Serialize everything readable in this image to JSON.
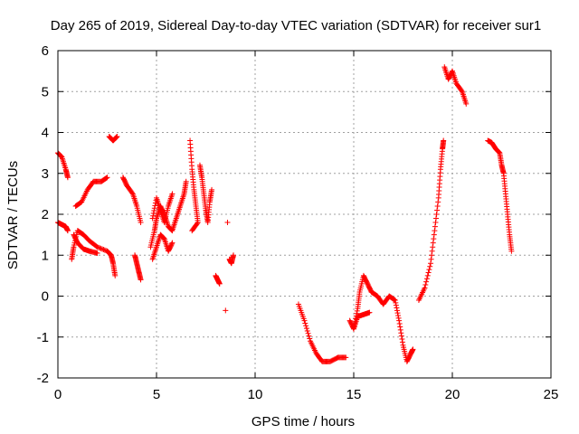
{
  "chart_data": {
    "type": "scatter",
    "title": "Day 265 of 2019, Sidereal Day-to-day VTEC variation (SDTVAR) for receiver sur1",
    "xlabel": "GPS time / hours",
    "ylabel": "SDTVAR / TECUs",
    "xlim": [
      0,
      25
    ],
    "ylim": [
      -2,
      6
    ],
    "xticks": [
      0,
      5,
      10,
      15,
      20,
      25
    ],
    "yticks": [
      -2,
      -1,
      0,
      1,
      2,
      3,
      4,
      5,
      6
    ],
    "grid": true,
    "marker": "+",
    "color": "#ff0000",
    "series": [
      {
        "name": "SDTVAR",
        "segments": [
          [
            [
              0.0,
              3.5
            ],
            [
              0.2,
              3.4
            ],
            [
              0.4,
              3.1
            ],
            [
              0.5,
              2.9
            ]
          ],
          [
            [
              0.0,
              1.8
            ],
            [
              0.2,
              1.75
            ],
            [
              0.4,
              1.7
            ],
            [
              0.5,
              1.6
            ]
          ],
          [
            [
              0.7,
              0.9
            ],
            [
              0.8,
              1.2
            ],
            [
              1.0,
              1.6
            ],
            [
              1.3,
              1.5
            ],
            [
              1.6,
              1.35
            ],
            [
              2.0,
              1.2
            ],
            [
              2.5,
              1.1
            ],
            [
              2.7,
              1.0
            ],
            [
              2.8,
              0.8
            ],
            [
              2.9,
              0.5
            ]
          ],
          [
            [
              0.8,
              1.5
            ],
            [
              1.0,
              1.3
            ],
            [
              1.3,
              1.15
            ],
            [
              1.6,
              1.1
            ],
            [
              2.0,
              1.05
            ]
          ],
          [
            [
              0.9,
              2.2
            ],
            [
              1.2,
              2.3
            ],
            [
              1.5,
              2.6
            ],
            [
              1.8,
              2.8
            ],
            [
              2.2,
              2.8
            ],
            [
              2.5,
              2.9
            ]
          ],
          [
            [
              2.6,
              3.9
            ],
            [
              2.8,
              3.8
            ],
            [
              3.0,
              3.9
            ]
          ],
          [
            [
              3.3,
              2.9
            ],
            [
              3.5,
              2.7
            ],
            [
              3.8,
              2.5
            ],
            [
              4.0,
              2.2
            ],
            [
              4.2,
              1.8
            ]
          ],
          [
            [
              3.9,
              1.0
            ],
            [
              4.0,
              0.8
            ],
            [
              4.1,
              0.6
            ],
            [
              4.2,
              0.4
            ]
          ],
          [
            [
              4.7,
              1.2
            ],
            [
              4.9,
              1.6
            ],
            [
              5.0,
              1.9
            ],
            [
              5.2,
              2.2
            ],
            [
              5.4,
              2.0
            ],
            [
              5.6,
              1.7
            ],
            [
              5.8,
              1.6
            ],
            [
              6.0,
              1.9
            ],
            [
              6.2,
              2.2
            ],
            [
              6.4,
              2.5
            ],
            [
              6.5,
              2.8
            ]
          ],
          [
            [
              4.8,
              0.9
            ],
            [
              5.0,
              1.2
            ],
            [
              5.2,
              1.5
            ],
            [
              5.4,
              1.4
            ],
            [
              5.6,
              1.1
            ],
            [
              5.8,
              1.3
            ]
          ],
          [
            [
              4.8,
              1.9
            ],
            [
              5.0,
              2.4
            ],
            [
              5.2,
              2.1
            ],
            [
              5.4,
              1.8
            ],
            [
              5.6,
              2.2
            ],
            [
              5.8,
              2.5
            ]
          ],
          [
            [
              6.7,
              3.8
            ],
            [
              6.8,
              3.1
            ],
            [
              6.9,
              2.6
            ],
            [
              7.0,
              2.2
            ],
            [
              7.1,
              1.8
            ],
            [
              6.8,
              1.6
            ]
          ],
          [
            [
              7.2,
              3.2
            ],
            [
              7.3,
              2.9
            ],
            [
              7.4,
              2.5
            ],
            [
              7.5,
              2.1
            ],
            [
              7.6,
              1.8
            ],
            [
              7.7,
              2.3
            ],
            [
              7.8,
              2.6
            ]
          ],
          [
            [
              8.0,
              0.5
            ],
            [
              8.1,
              0.4
            ],
            [
              8.2,
              0.3
            ]
          ],
          [
            [
              8.5,
              -0.35
            ]
          ],
          [
            [
              8.6,
              1.8
            ]
          ],
          [
            [
              8.7,
              0.9
            ],
            [
              8.8,
              0.8
            ],
            [
              8.9,
              1.0
            ]
          ],
          [
            [
              12.2,
              -0.2
            ],
            [
              12.5,
              -0.6
            ],
            [
              12.8,
              -1.1
            ],
            [
              13.1,
              -1.4
            ],
            [
              13.4,
              -1.6
            ],
            [
              13.8,
              -1.6
            ],
            [
              14.2,
              -1.5
            ],
            [
              14.6,
              -1.5
            ]
          ],
          [
            [
              14.8,
              -0.6
            ],
            [
              15.0,
              -0.8
            ],
            [
              15.2,
              -0.3
            ],
            [
              15.3,
              0.1
            ],
            [
              15.5,
              0.5
            ],
            [
              15.7,
              0.3
            ],
            [
              15.9,
              0.1
            ],
            [
              16.2,
              0.0
            ],
            [
              16.5,
              -0.2
            ],
            [
              16.8,
              0.0
            ],
            [
              17.1,
              -0.1
            ],
            [
              17.3,
              -0.6
            ],
            [
              17.5,
              -1.2
            ],
            [
              17.7,
              -1.6
            ],
            [
              17.9,
              -1.4
            ],
            [
              18.0,
              -1.3
            ]
          ],
          [
            [
              15.0,
              -0.8
            ],
            [
              15.2,
              -0.5
            ],
            [
              15.5,
              -0.45
            ],
            [
              15.8,
              -0.4
            ]
          ],
          [
            [
              18.3,
              -0.1
            ],
            [
              18.6,
              0.2
            ],
            [
              18.9,
              0.8
            ],
            [
              19.1,
              1.6
            ],
            [
              19.3,
              2.4
            ],
            [
              19.4,
              3.1
            ],
            [
              19.5,
              3.6
            ],
            [
              19.55,
              3.8
            ]
          ],
          [
            [
              19.6,
              5.6
            ],
            [
              19.8,
              5.3
            ],
            [
              20.0,
              5.5
            ],
            [
              20.2,
              5.2
            ],
            [
              20.5,
              5.0
            ],
            [
              20.7,
              4.7
            ]
          ],
          [
            [
              21.8,
              3.8
            ],
            [
              22.0,
              3.75
            ],
            [
              22.2,
              3.6
            ],
            [
              22.4,
              3.5
            ],
            [
              22.5,
              3.2
            ],
            [
              22.6,
              3.0
            ],
            [
              22.7,
              2.5
            ],
            [
              22.8,
              2.0
            ],
            [
              22.9,
              1.5
            ],
            [
              23.0,
              1.1
            ]
          ]
        ]
      }
    ]
  }
}
